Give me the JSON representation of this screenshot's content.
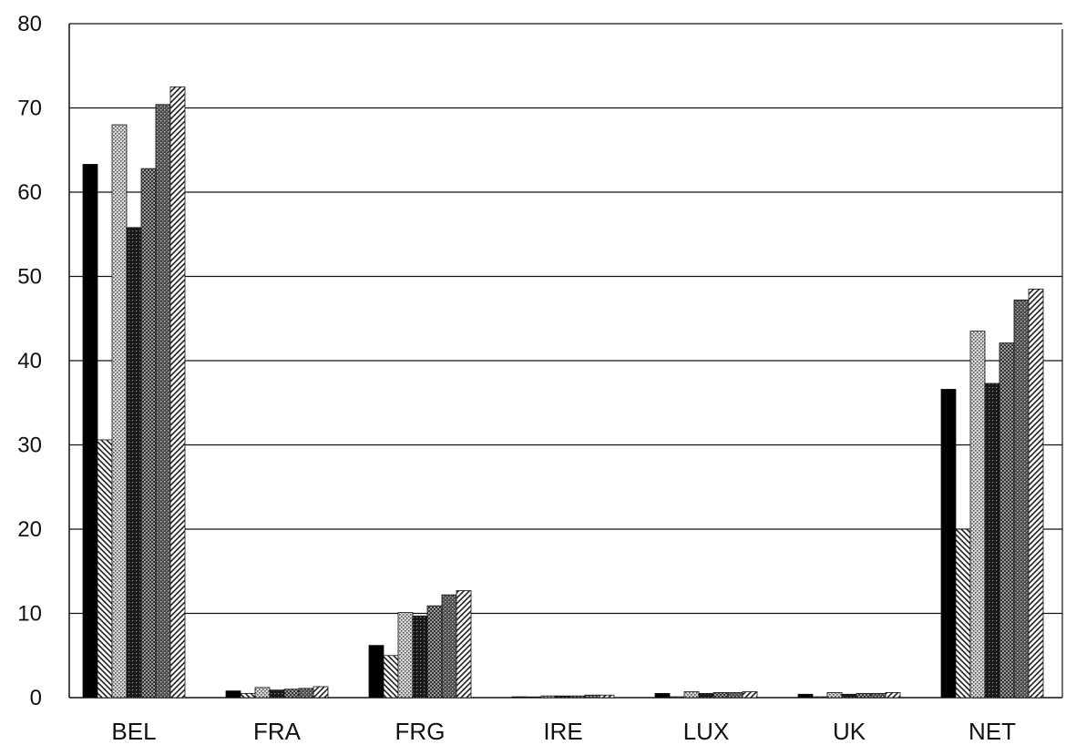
{
  "chart_data": {
    "type": "bar",
    "title": "",
    "xlabel": "",
    "ylabel": "",
    "ylim": [
      0,
      80
    ],
    "yticks": [
      0,
      10,
      20,
      30,
      40,
      50,
      60,
      70,
      80
    ],
    "grid": "horizontal",
    "legend": "none",
    "categories": [
      "BEL",
      "FRA",
      "FRG",
      "IRE",
      "LUX",
      "UK",
      "NET"
    ],
    "series": [
      {
        "values": [
          63.3,
          0.8,
          6.2,
          0.1,
          0.5,
          0.4,
          36.6
        ],
        "color": "#000000",
        "pattern": "solid"
      },
      {
        "values": [
          30.6,
          0.5,
          5.0,
          0.05,
          0.1,
          0.1,
          20.0
        ],
        "color": "#555555",
        "pattern": "diag-back"
      },
      {
        "values": [
          68.0,
          1.2,
          10.1,
          0.2,
          0.7,
          0.6,
          43.5
        ],
        "color": "#9a9a9a",
        "pattern": "stipple-light"
      },
      {
        "values": [
          55.8,
          0.9,
          9.7,
          0.2,
          0.5,
          0.4,
          37.3
        ],
        "color": "#222222",
        "pattern": "cross-dark"
      },
      {
        "values": [
          62.8,
          1.0,
          10.9,
          0.2,
          0.6,
          0.5,
          42.1
        ],
        "color": "#666666",
        "pattern": "check"
      },
      {
        "values": [
          70.4,
          1.1,
          12.2,
          0.3,
          0.6,
          0.5,
          47.2
        ],
        "color": "#444444",
        "pattern": "stipple-dark"
      },
      {
        "values": [
          72.5,
          1.3,
          12.7,
          0.3,
          0.7,
          0.6,
          48.5
        ],
        "color": "#777777",
        "pattern": "diag-fwd"
      }
    ]
  }
}
